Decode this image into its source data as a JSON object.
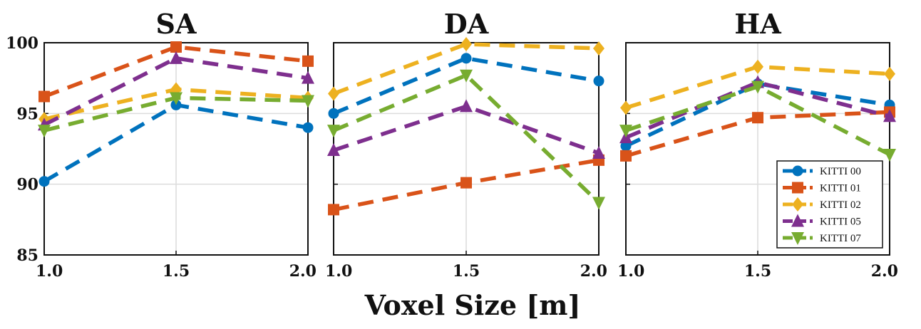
{
  "chart_data": [
    {
      "type": "line",
      "title": "SA",
      "x": [
        1.0,
        1.5,
        2.0
      ],
      "x_ticks": [
        "1.0",
        "1.5",
        "2.0"
      ],
      "y_ticks": [
        "85",
        "90",
        "95",
        "100"
      ],
      "ylim": [
        85,
        100
      ],
      "grid": true,
      "series": [
        {
          "name": "KITTI 00",
          "values": [
            90.2,
            95.6,
            94.0
          ]
        },
        {
          "name": "KITTI 01",
          "values": [
            96.2,
            99.7,
            98.7
          ]
        },
        {
          "name": "KITTI 02",
          "values": [
            94.6,
            96.7,
            96.1
          ]
        },
        {
          "name": "KITTI 05",
          "values": [
            94.2,
            98.9,
            97.5
          ]
        },
        {
          "name": "KITTI 07",
          "values": [
            93.8,
            96.1,
            95.9
          ]
        }
      ]
    },
    {
      "type": "line",
      "title": "DA",
      "x": [
        1.0,
        1.5,
        2.0
      ],
      "x_ticks": [
        "1.0",
        "1.5",
        "2.0"
      ],
      "ylim": [
        85,
        100
      ],
      "grid": true,
      "series": [
        {
          "name": "KITTI 00",
          "values": [
            95.0,
            98.9,
            97.3
          ]
        },
        {
          "name": "KITTI 01",
          "values": [
            88.2,
            90.1,
            91.7
          ]
        },
        {
          "name": "KITTI 02",
          "values": [
            96.4,
            99.9,
            99.6
          ]
        },
        {
          "name": "KITTI 05",
          "values": [
            92.4,
            95.5,
            92.2
          ]
        },
        {
          "name": "KITTI 07",
          "values": [
            93.8,
            97.7,
            88.7
          ]
        }
      ]
    },
    {
      "type": "line",
      "title": "HA",
      "x": [
        1.0,
        1.5,
        2.0
      ],
      "x_ticks": [
        "1.0",
        "1.5",
        "2.0"
      ],
      "ylim": [
        85,
        100
      ],
      "grid": true,
      "legend_position": "bottom-right",
      "series": [
        {
          "name": "KITTI 00",
          "values": [
            92.7,
            97.1,
            95.6
          ]
        },
        {
          "name": "KITTI 01",
          "values": [
            92.0,
            94.7,
            95.1
          ]
        },
        {
          "name": "KITTI 02",
          "values": [
            95.4,
            98.3,
            97.8
          ]
        },
        {
          "name": "KITTI 05",
          "values": [
            93.3,
            97.2,
            94.8
          ]
        },
        {
          "name": "KITTI 07",
          "values": [
            93.8,
            96.9,
            92.1
          ]
        }
      ]
    }
  ],
  "xlabel": "Voxel Size [m]",
  "series_styles": [
    {
      "color": "#0072BD",
      "marker": "circle"
    },
    {
      "color": "#D95319",
      "marker": "square"
    },
    {
      "color": "#EDB120",
      "marker": "diamond"
    },
    {
      "color": "#7E2F8E",
      "marker": "triangle-up"
    },
    {
      "color": "#77AC30",
      "marker": "triangle-down"
    }
  ]
}
